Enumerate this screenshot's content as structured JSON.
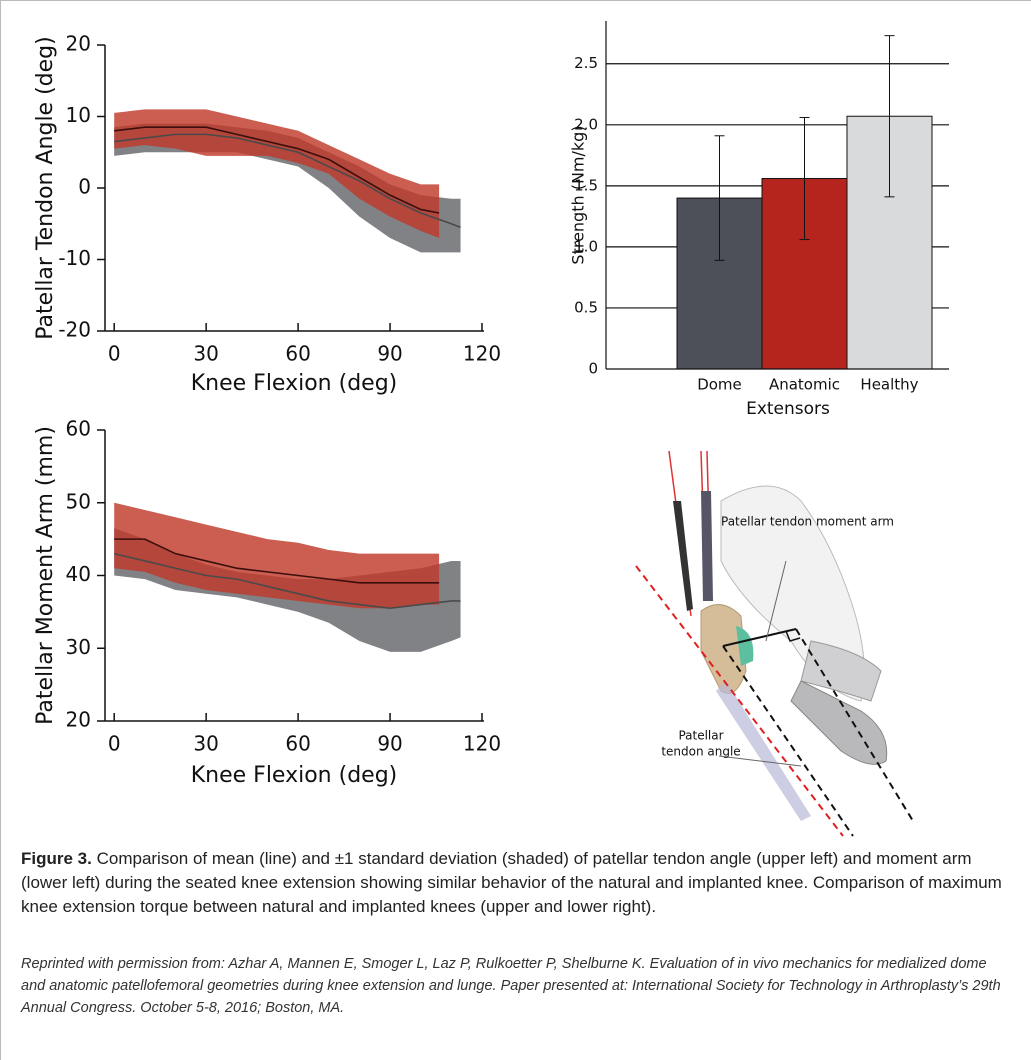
{
  "chart_data": [
    {
      "type": "line",
      "ylabel": "Patellar Tendon Angle (deg)",
      "xlabel": "Knee Flexion (deg)",
      "xlim": [
        -3,
        120
      ],
      "ylim": [
        -20,
        20
      ],
      "xticks": [
        0,
        30,
        60,
        90,
        120
      ],
      "yticks": [
        20,
        10,
        0,
        -10,
        -20
      ],
      "series": [
        {
          "color": "#808285",
          "line_color": "#4a4a4a",
          "x": [
            0,
            10,
            20,
            30,
            40,
            50,
            60,
            70,
            80,
            90,
            100,
            110,
            113
          ],
          "values": [
            6.5,
            7,
            7.5,
            7.5,
            7,
            6,
            5,
            3,
            1,
            -1.5,
            -3.5,
            -5,
            -5.5
          ],
          "upper": [
            8.5,
            9,
            9,
            9,
            8.5,
            8,
            7,
            5,
            3,
            0.5,
            -1,
            -1.5,
            -1.5
          ],
          "lower": [
            4.5,
            5,
            5,
            5,
            5,
            4,
            3,
            0,
            -4,
            -7,
            -9,
            -9,
            -9
          ]
        },
        {
          "color": "#c0392b",
          "line_color": "#3b0f0c",
          "x": [
            0,
            10,
            20,
            30,
            40,
            50,
            60,
            70,
            80,
            90,
            100,
            106
          ],
          "values": [
            8,
            8.5,
            8.5,
            8.5,
            7.5,
            6.5,
            5.5,
            4,
            1.5,
            -1,
            -3,
            -3.5
          ],
          "upper": [
            10.5,
            11,
            11,
            11,
            10,
            9,
            8,
            6,
            4,
            2,
            0.5,
            0.5
          ],
          "lower": [
            5.5,
            6,
            5.5,
            4.5,
            4.5,
            4.5,
            3.5,
            2,
            -1.5,
            -4,
            -6,
            -7
          ]
        }
      ]
    },
    {
      "type": "bar",
      "ylabel": "Strength (Nm/kg)",
      "xlabel": "Extensors",
      "categories": [
        "Dome",
        "Anatomic",
        "Healthy"
      ],
      "values": [
        1.4,
        1.56,
        2.07
      ],
      "errors": [
        0.51,
        0.5,
        0.66
      ],
      "colors": [
        "#4d5058",
        "#b5251e",
        "#d9dadc"
      ],
      "ylim": [
        0,
        2.85
      ],
      "yticks": [
        0,
        0.5,
        {
          "value": 1,
          "label": "1.0"
        },
        1.5,
        {
          "value": 2,
          "label": "2.0"
        },
        2.5
      ],
      "grid": true
    },
    {
      "type": "line",
      "ylabel": "Patellar Moment Arm (mm)",
      "xlabel": "Knee Flexion (deg)",
      "xlim": [
        -3,
        120
      ],
      "ylim": [
        20,
        60
      ],
      "xticks": [
        0,
        30,
        60,
        90,
        120
      ],
      "yticks": [
        60,
        50,
        40,
        30,
        20
      ],
      "series": [
        {
          "color": "#808285",
          "line_color": "#4a4a4a",
          "x": [
            0,
            10,
            20,
            30,
            40,
            50,
            60,
            70,
            80,
            90,
            100,
            110,
            113
          ],
          "values": [
            43,
            42,
            41,
            40,
            39.5,
            38.5,
            37.5,
            36.5,
            36,
            35.5,
            36,
            36.5,
            36.5
          ],
          "upper": [
            46.5,
            45,
            43,
            41.5,
            40.5,
            40,
            39.5,
            39.5,
            40,
            40.5,
            41,
            42,
            42
          ],
          "lower": [
            40,
            39.5,
            38,
            37.5,
            37,
            36,
            35,
            33.5,
            31,
            29.5,
            29.5,
            31,
            31.5
          ]
        },
        {
          "color": "#c0392b",
          "line_color": "#3b0f0c",
          "x": [
            0,
            10,
            20,
            30,
            40,
            50,
            60,
            70,
            80,
            90,
            100,
            106
          ],
          "values": [
            45,
            45,
            43,
            42,
            41,
            40.5,
            40,
            39.5,
            39,
            39,
            39,
            39
          ],
          "upper": [
            50,
            49,
            48,
            47,
            46,
            45,
            44.5,
            43.5,
            43,
            43,
            43,
            43
          ],
          "lower": [
            41,
            40.5,
            39,
            38,
            37.5,
            37,
            36.5,
            36,
            35.5,
            35.5,
            36,
            36
          ]
        }
      ]
    }
  ],
  "diagram": {
    "labels": [
      "Patellar tendon moment arm",
      "Patellar",
      "tendon angle"
    ]
  },
  "figure": {
    "label": "Figure 3.",
    "caption": "Comparison of mean (line) and ±1 standard deviation (shaded) of patellar tendon angle (upper left) and moment arm (lower left) during the seated knee extension showing similar behavior of the natural and implanted knee. Comparison of maximum knee extension torque between natural and implanted knees (upper and lower right).",
    "credit": "Reprinted with permission from: Azhar A, Mannen E, Smoger L, Laz P, Rulkoetter P, Shelburne K. Evaluation of in vivo mechanics for medialized dome and anatomic patellofemoral geometries during knee extension and lunge. Paper presented at: International Society for Technology in Arthroplasty’s 29th Annual Congress. October 5-8, 2016; Boston, MA."
  }
}
